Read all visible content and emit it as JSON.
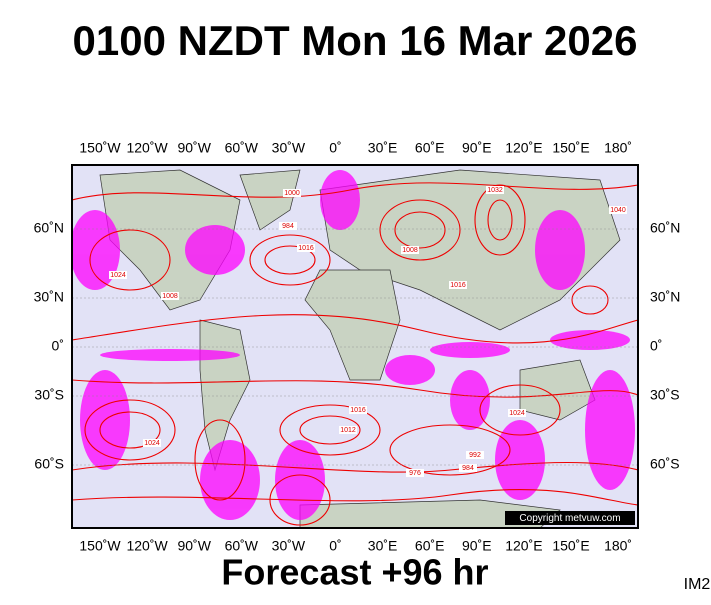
{
  "header": {
    "title": "0100 NZDT Mon 16 Mar 2026"
  },
  "map": {
    "lon_labels": [
      "150˚W",
      "120˚W",
      "90˚W",
      "60˚W",
      "30˚W",
      "0˚",
      "30˚E",
      "60˚E",
      "90˚E",
      "120˚E",
      "150˚E",
      "180˚"
    ],
    "lat_labels": [
      "60˚N",
      "30˚N",
      "0˚",
      "30˚S",
      "60˚S"
    ],
    "isobar_labels": [
      "1000",
      "984",
      "1016",
      "1024",
      "1008",
      "1032",
      "1016",
      "1024",
      "1016",
      "1008",
      "992",
      "976",
      "984",
      "1024",
      "1040",
      "1012"
    ],
    "copyright": "Copyright metvuw.com"
  },
  "footer": {
    "forecast": "Forecast +96 hr",
    "code": "IM2"
  }
}
